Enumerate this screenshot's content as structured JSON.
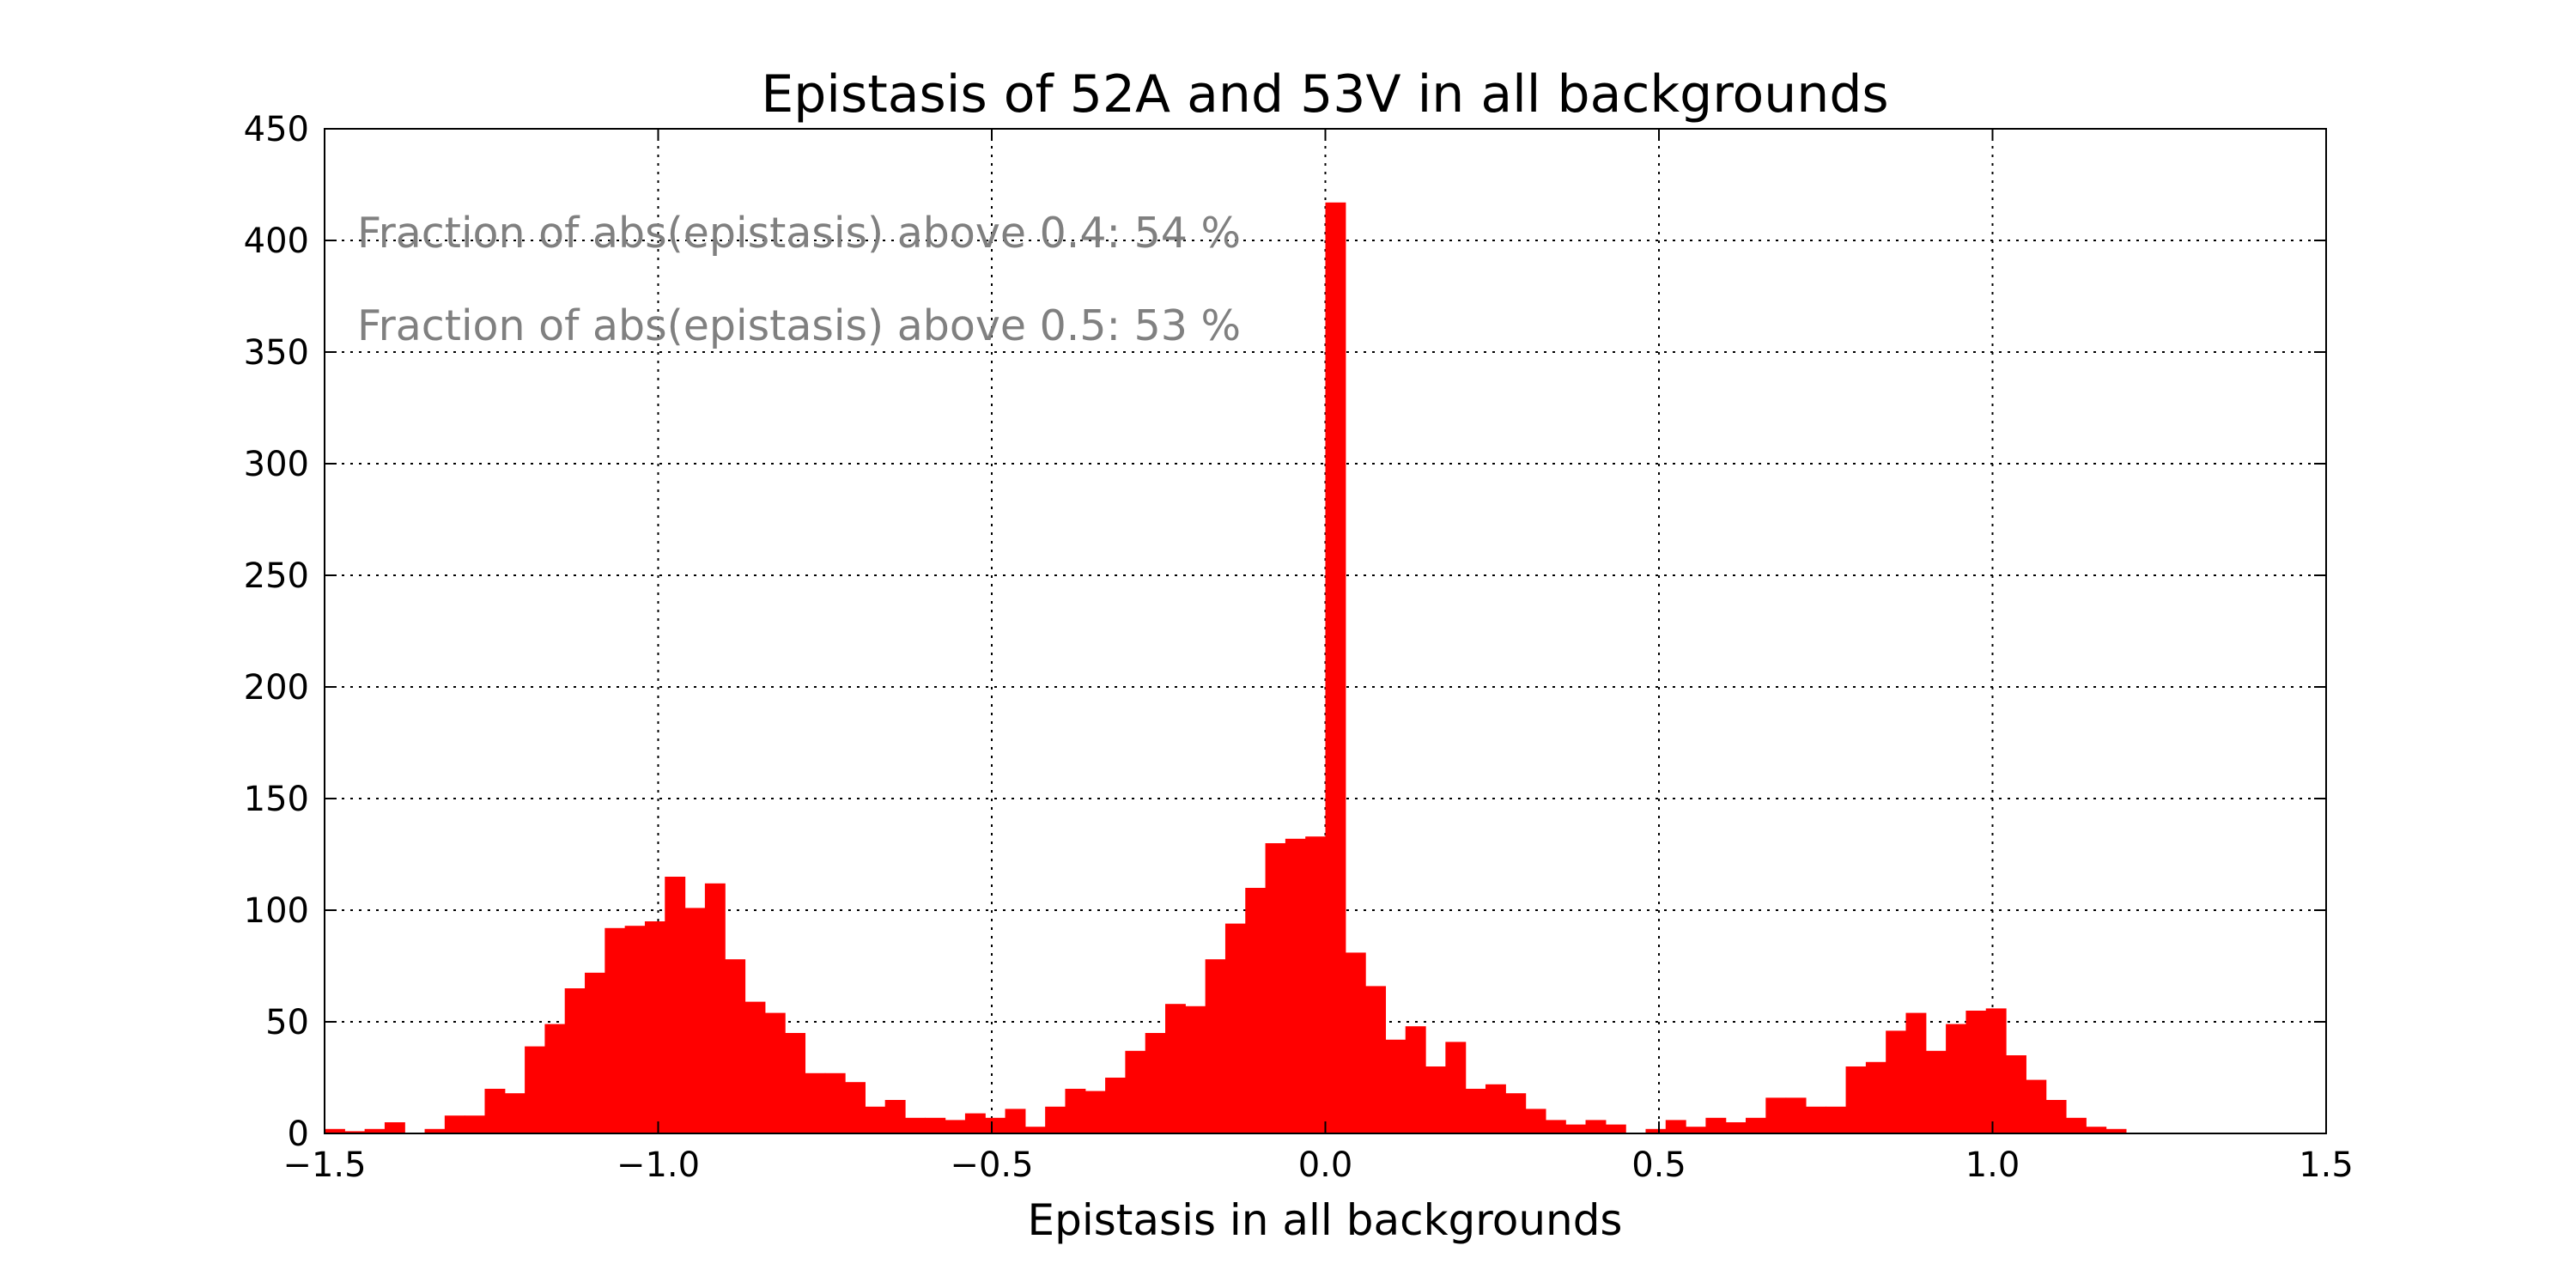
{
  "chart_data": {
    "type": "bar",
    "title": "Epistasis of 52A and 53V in all backgrounds",
    "xlabel": "Epistasis in all backgrounds",
    "ylabel": "",
    "xlim": [
      -1.5,
      1.5
    ],
    "ylim": [
      0,
      450
    ],
    "xticks": [
      -1.5,
      -1.0,
      -0.5,
      0.0,
      0.5,
      1.0,
      1.5
    ],
    "xtick_labels": [
      "−1.5",
      "−1.0",
      "−0.5",
      "0.0",
      "0.5",
      "1.0",
      "1.5"
    ],
    "yticks": [
      0,
      50,
      100,
      150,
      200,
      250,
      300,
      350,
      400,
      450
    ],
    "ytick_labels": [
      "0",
      "50",
      "100",
      "150",
      "200",
      "250",
      "300",
      "350",
      "400",
      "450"
    ],
    "grid": true,
    "bar_color": "#ff0000",
    "annotation_color": "#808080",
    "annotations": [
      "Fraction of abs(epistasis) above 0.4: 54 %",
      "Fraction of abs(epistasis) above 0.5: 53 %"
    ],
    "bin_start": -1.5,
    "bin_width": 0.03,
    "values": [
      2,
      1,
      2,
      5,
      0,
      2,
      8,
      8,
      20,
      18,
      39,
      49,
      65,
      72,
      92,
      93,
      95,
      115,
      101,
      112,
      78,
      59,
      54,
      45,
      27,
      27,
      23,
      12,
      15,
      7,
      7,
      6,
      9,
      7,
      11,
      3,
      12,
      20,
      19,
      25,
      37,
      45,
      58,
      57,
      78,
      94,
      110,
      130,
      132,
      133,
      417,
      81,
      66,
      42,
      48,
      30,
      41,
      20,
      22,
      18,
      11,
      6,
      4,
      6,
      4,
      0,
      2,
      6,
      3,
      7,
      5,
      7,
      16,
      16,
      12,
      12,
      30,
      32,
      46,
      54,
      37,
      49,
      55,
      56,
      35,
      24,
      15,
      7,
      3,
      2,
      0,
      0,
      0,
      0,
      0,
      0,
      0,
      0,
      0,
      0
    ]
  }
}
